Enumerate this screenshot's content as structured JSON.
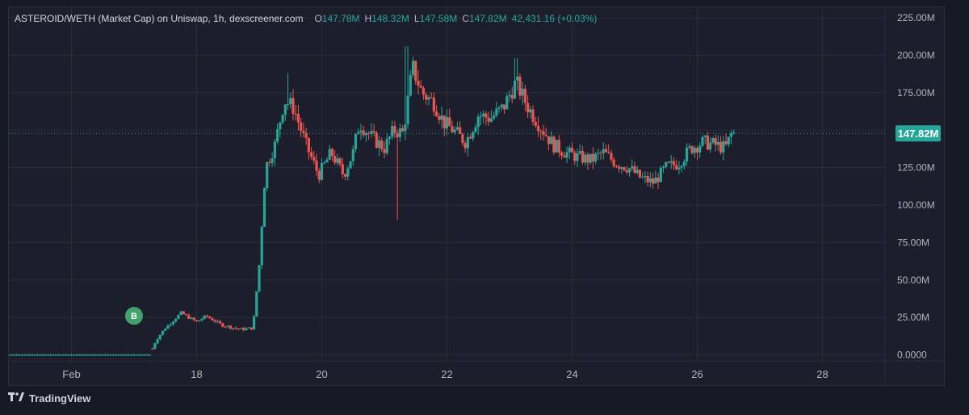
{
  "header": {
    "title": "ASTEROID/WETH (Market Cap) on Uniswap, 1h, dexscreener.com",
    "o_label": "O",
    "o_value": "147.78M",
    "h_label": "H",
    "h_value": "148.32M",
    "l_label": "L",
    "l_value": "147.58M",
    "c_label": "C",
    "c_value": "147.82M",
    "change": "42,431.16 (+0.03%)"
  },
  "footer": {
    "brand": "TradingView",
    "logo_icon": "tradingview-logo-icon"
  },
  "colors": {
    "up": "#26a69a",
    "down": "#ef5350",
    "background": "#1c1f2b",
    "grid": "#2a2e39",
    "price_tag": "#26a69a",
    "marker": "#3fa36b"
  },
  "chart_data": {
    "type": "candlestick",
    "y_ticks": [
      "225.00M",
      "200.00M",
      "175.00M",
      "150.00M",
      "125.00M",
      "100.00M",
      "75.00M",
      "50.00M",
      "25.00M",
      "0.0000"
    ],
    "y_tick_values": [
      225,
      200,
      175,
      150,
      125,
      100,
      75,
      50,
      25,
      0
    ],
    "y_unit": "M",
    "ylim": [
      -4,
      232
    ],
    "x_ticks": [
      "Feb",
      "18",
      "20",
      "22",
      "24",
      "26",
      "28"
    ],
    "x_tick_days": [
      16,
      18,
      20,
      22,
      24,
      26,
      28
    ],
    "xlim_days": [
      15.0,
      29.0
    ],
    "last_price_label": "147.82M",
    "last_price": 147.82,
    "buy_marker": {
      "label": "B",
      "day": 17.0,
      "value": 25
    },
    "grid": true,
    "series_points": [
      [
        15.0,
        0
      ],
      [
        17.25,
        0
      ],
      [
        17.35,
        10
      ],
      [
        17.5,
        18
      ],
      [
        17.75,
        28
      ],
      [
        18.0,
        22
      ],
      [
        18.15,
        26
      ],
      [
        18.4,
        20
      ],
      [
        18.7,
        17
      ],
      [
        18.9,
        18
      ],
      [
        19.0,
        60
      ],
      [
        19.1,
        125
      ],
      [
        19.25,
        140
      ],
      [
        19.4,
        170
      ],
      [
        19.55,
        165
      ],
      [
        19.75,
        140
      ],
      [
        19.95,
        120
      ],
      [
        20.15,
        135
      ],
      [
        20.35,
        120
      ],
      [
        20.5,
        135
      ],
      [
        20.6,
        155
      ],
      [
        20.8,
        145
      ],
      [
        21.0,
        138
      ],
      [
        21.15,
        150
      ],
      [
        21.3,
        148
      ],
      [
        21.45,
        192
      ],
      [
        21.6,
        175
      ],
      [
        21.8,
        168
      ],
      [
        21.95,
        155
      ],
      [
        22.1,
        150
      ],
      [
        22.3,
        142
      ],
      [
        22.5,
        160
      ],
      [
        22.7,
        158
      ],
      [
        22.9,
        165
      ],
      [
        23.1,
        182
      ],
      [
        23.3,
        165
      ],
      [
        23.5,
        152
      ],
      [
        23.7,
        140
      ],
      [
        23.9,
        135
      ],
      [
        24.1,
        132
      ],
      [
        24.3,
        130
      ],
      [
        24.5,
        135
      ],
      [
        24.7,
        128
      ],
      [
        24.9,
        125
      ],
      [
        25.1,
        118
      ],
      [
        25.3,
        115
      ],
      [
        25.5,
        125
      ],
      [
        25.7,
        128
      ],
      [
        25.9,
        138
      ],
      [
        26.1,
        142
      ],
      [
        26.3,
        140
      ],
      [
        26.45,
        138
      ],
      [
        26.55,
        148
      ],
      [
        26.6,
        147.82
      ]
    ]
  }
}
